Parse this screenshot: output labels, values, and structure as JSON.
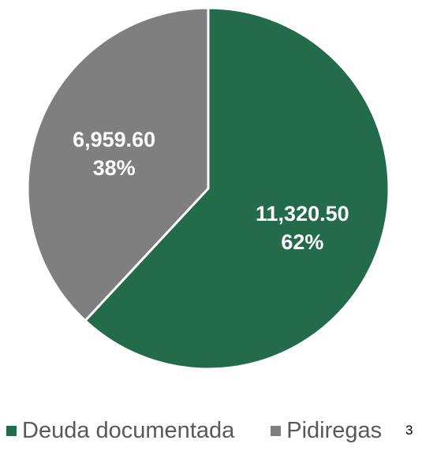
{
  "chart_data": {
    "type": "pie",
    "categories": [
      "Deuda documentada",
      "Pidiregas"
    ],
    "values": [
      11320.5,
      6959.6
    ],
    "value_labels": [
      "11,320.50",
      "6,959.60"
    ],
    "percent_labels": [
      "62%",
      "38%"
    ],
    "colors": [
      "#236B4A",
      "#7F7F7F"
    ],
    "start_angle": "12 o'clock",
    "direction": "clockwise",
    "legend": "bottom"
  },
  "page_number": "3"
}
